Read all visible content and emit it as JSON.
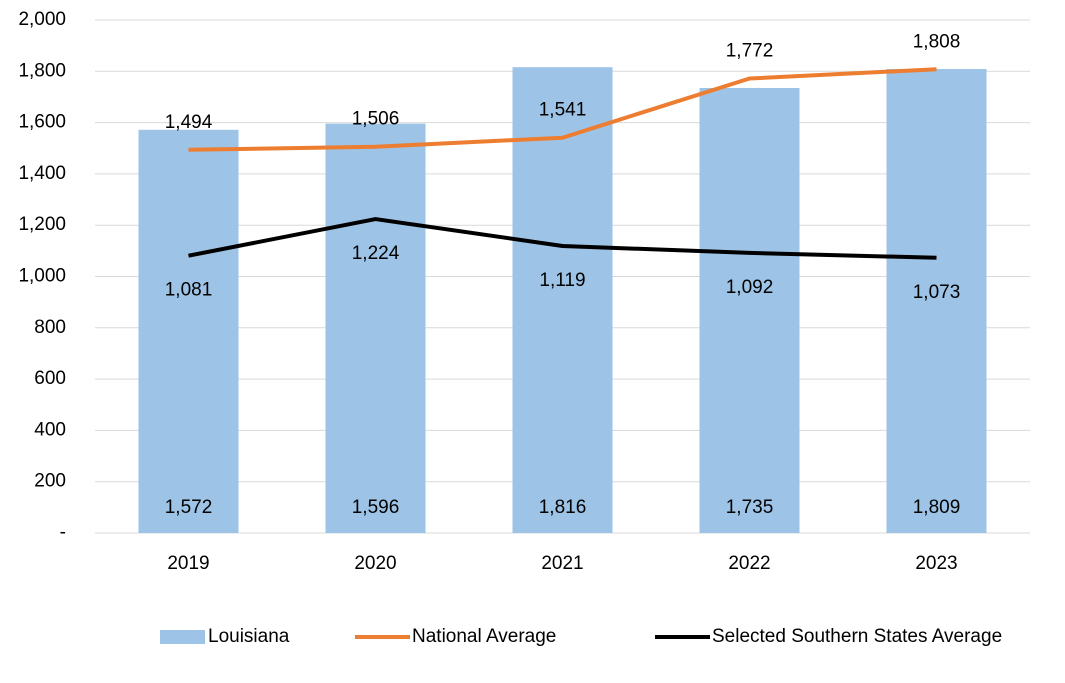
{
  "chart_data": {
    "type": "combo",
    "categories": [
      "2019",
      "2020",
      "2021",
      "2022",
      "2023"
    ],
    "series": [
      {
        "name": "Louisiana",
        "type": "bar",
        "color": "#9dc3e6",
        "values": [
          1572,
          1596,
          1816,
          1735,
          1809
        ],
        "value_labels": [
          "1,572",
          "1,596",
          "1,816",
          "1,735",
          "1,809"
        ]
      },
      {
        "name": "National Average",
        "type": "line",
        "color": "#ed7d31",
        "values": [
          1494,
          1506,
          1541,
          1772,
          1808
        ],
        "value_labels": [
          "1,494",
          "1,506",
          "1,541",
          "1,772",
          "1,808"
        ]
      },
      {
        "name": "Selected Southern States Average",
        "type": "line",
        "color": "#000000",
        "values": [
          1081,
          1224,
          1119,
          1092,
          1073
        ],
        "value_labels": [
          "1,081",
          "1,224",
          "1,119",
          "1,092",
          "1,073"
        ]
      }
    ],
    "ylim": [
      0,
      2000
    ],
    "yticks": [
      {
        "value": 0,
        "label": "-"
      },
      200,
      400,
      600,
      800,
      {
        "value": 1000,
        "label": "1,000"
      },
      {
        "value": 1200,
        "label": "1,200"
      },
      {
        "value": 1400,
        "label": "1,400"
      },
      {
        "value": 1600,
        "label": "1,600"
      },
      {
        "value": 1800,
        "label": "1,800"
      },
      {
        "value": 2000,
        "label": "2,000"
      }
    ],
    "grid": true,
    "legend": "bottom"
  }
}
